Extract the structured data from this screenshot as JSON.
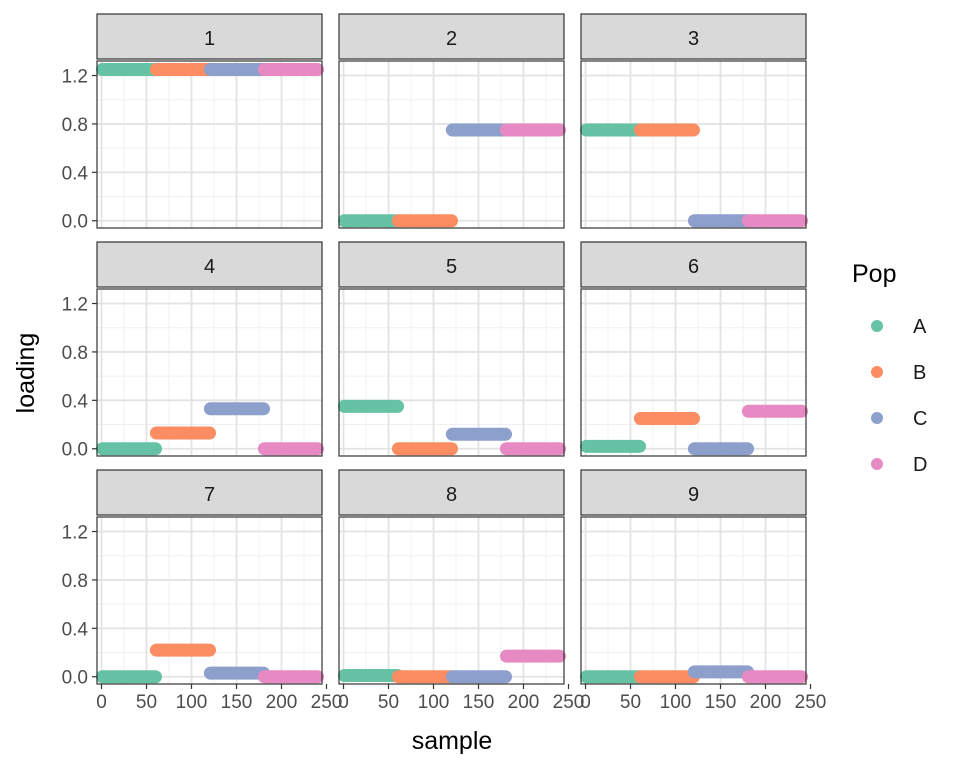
{
  "chart_data": {
    "type": "scatter",
    "xlabel": "sample",
    "ylabel": "loading",
    "xlim": [
      -5,
      245
    ],
    "ylim": [
      -0.06,
      1.32
    ],
    "x_ticks": [
      0,
      50,
      100,
      150,
      200,
      250
    ],
    "y_ticks": [
      0.0,
      0.4,
      0.8,
      1.2
    ],
    "x_tick_labels": [
      "0",
      "50",
      "100",
      "150",
      "200",
      "250"
    ],
    "y_tick_labels": [
      "0.0",
      "0.4",
      "0.8",
      "1.2"
    ],
    "grid": true,
    "legend": {
      "title": "Pop",
      "position": "right",
      "entries": [
        {
          "name": "A",
          "color": "#66C2A5"
        },
        {
          "name": "B",
          "color": "#FC8D62"
        },
        {
          "name": "C",
          "color": "#8DA0CB"
        },
        {
          "name": "D",
          "color": "#E78AC3"
        }
      ]
    },
    "population_ranges": {
      "A": [
        1,
        60
      ],
      "B": [
        61,
        120
      ],
      "C": [
        121,
        180
      ],
      "D": [
        181,
        240
      ]
    },
    "panels": [
      {
        "title": "1",
        "values": {
          "A": 1.25,
          "B": 1.25,
          "C": 1.25,
          "D": 1.25
        }
      },
      {
        "title": "2",
        "values": {
          "A": 0.0,
          "B": 0.0,
          "C": 0.75,
          "D": 0.75
        }
      },
      {
        "title": "3",
        "values": {
          "A": 0.75,
          "B": 0.75,
          "C": 0.0,
          "D": 0.0
        }
      },
      {
        "title": "4",
        "values": {
          "A": 0.0,
          "B": 0.13,
          "C": 0.33,
          "D": 0.0
        }
      },
      {
        "title": "5",
        "values": {
          "A": 0.35,
          "B": 0.0,
          "C": 0.12,
          "D": 0.0
        }
      },
      {
        "title": "6",
        "values": {
          "A": 0.02,
          "B": 0.25,
          "C": 0.0,
          "D": 0.31
        }
      },
      {
        "title": "7",
        "values": {
          "A": 0.0,
          "B": 0.22,
          "C": 0.03,
          "D": 0.0
        }
      },
      {
        "title": "8",
        "values": {
          "A": 0.01,
          "B": 0.0,
          "C": 0.0,
          "D": 0.17
        }
      },
      {
        "title": "9",
        "values": {
          "A": 0.0,
          "B": 0.0,
          "C": 0.04,
          "D": 0.0
        }
      }
    ]
  }
}
